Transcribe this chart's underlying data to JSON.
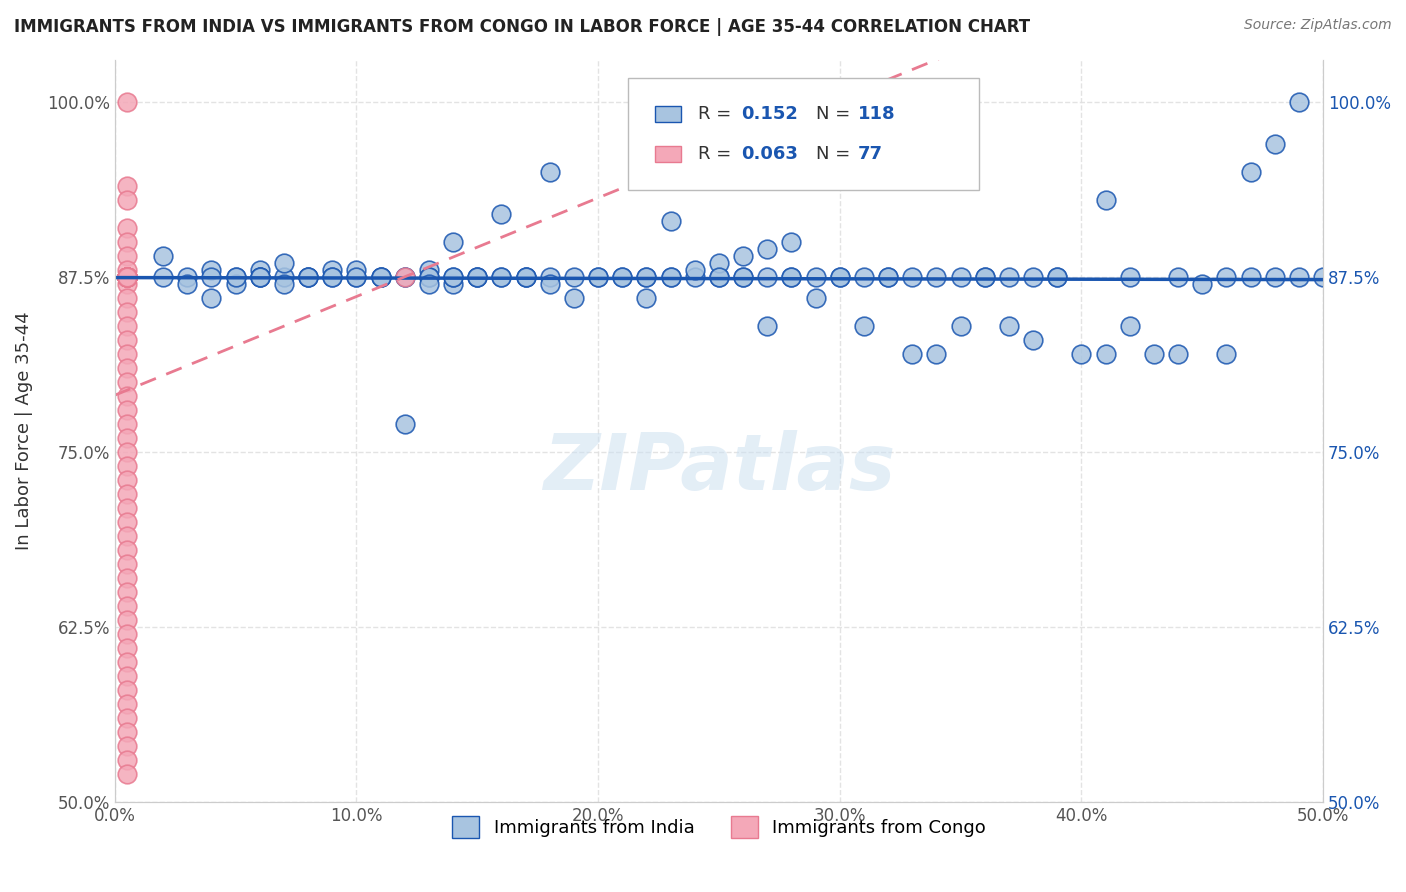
{
  "title": "IMMIGRANTS FROM INDIA VS IMMIGRANTS FROM CONGO IN LABOR FORCE | AGE 35-44 CORRELATION CHART",
  "source": "Source: ZipAtlas.com",
  "ylabel": "In Labor Force | Age 35-44",
  "xlim": [
    0.0,
    0.5
  ],
  "ylim": [
    0.5,
    1.03
  ],
  "yticks": [
    0.5,
    0.625,
    0.75,
    0.875,
    1.0
  ],
  "ytick_labels": [
    "50.0%",
    "62.5%",
    "75.0%",
    "87.5%",
    "100.0%"
  ],
  "xticks": [
    0.0,
    0.1,
    0.2,
    0.3,
    0.4,
    0.5
  ],
  "xtick_labels": [
    "0.0%",
    "10.0%",
    "20.0%",
    "30.0%",
    "40.0%",
    "50.0%"
  ],
  "legend_R_india": "0.152",
  "legend_N_india": "118",
  "legend_R_congo": "0.063",
  "legend_N_congo": "77",
  "india_color": "#a8c4e0",
  "congo_color": "#f4a8b8",
  "india_line_color": "#1a56b0",
  "congo_line_color": "#e87a90",
  "watermark": "ZIPatlas",
  "grid_color": "#e0e0e0",
  "india_scatter_x": [
    0.02,
    0.03,
    0.04,
    0.02,
    0.03,
    0.04,
    0.05,
    0.06,
    0.07,
    0.04,
    0.05,
    0.06,
    0.07,
    0.08,
    0.09,
    0.1,
    0.12,
    0.13,
    0.14,
    0.15,
    0.07,
    0.08,
    0.09,
    0.1,
    0.11,
    0.13,
    0.14,
    0.15,
    0.16,
    0.17,
    0.05,
    0.06,
    0.08,
    0.09,
    0.1,
    0.11,
    0.12,
    0.13,
    0.14,
    0.15,
    0.16,
    0.17,
    0.18,
    0.19,
    0.2,
    0.21,
    0.22,
    0.23,
    0.24,
    0.25,
    0.26,
    0.27,
    0.28,
    0.29,
    0.3,
    0.31,
    0.32,
    0.33,
    0.34,
    0.35,
    0.2,
    0.21,
    0.22,
    0.24,
    0.25,
    0.26,
    0.27,
    0.28,
    0.38,
    0.4,
    0.42,
    0.44,
    0.46,
    0.14,
    0.16,
    0.18,
    0.23,
    0.3,
    0.36,
    0.39,
    0.12,
    0.19,
    0.22,
    0.25,
    0.27,
    0.29,
    0.31,
    0.33,
    0.34,
    0.35,
    0.37,
    0.38,
    0.41,
    0.43,
    0.45,
    0.47,
    0.48,
    0.49,
    0.13,
    0.17,
    0.18,
    0.23,
    0.26,
    0.28,
    0.32,
    0.36,
    0.37,
    0.39,
    0.41,
    0.42,
    0.44,
    0.46,
    0.47,
    0.48,
    0.49,
    0.5,
    0.06,
    0.11
  ],
  "india_scatter_y": [
    0.875,
    0.875,
    0.88,
    0.89,
    0.87,
    0.86,
    0.875,
    0.88,
    0.875,
    0.875,
    0.87,
    0.875,
    0.885,
    0.875,
    0.88,
    0.875,
    0.875,
    0.88,
    0.87,
    0.875,
    0.87,
    0.875,
    0.875,
    0.88,
    0.875,
    0.875,
    0.875,
    0.875,
    0.875,
    0.875,
    0.875,
    0.875,
    0.875,
    0.875,
    0.875,
    0.875,
    0.875,
    0.875,
    0.875,
    0.875,
    0.875,
    0.875,
    0.875,
    0.875,
    0.875,
    0.875,
    0.875,
    0.875,
    0.875,
    0.875,
    0.875,
    0.875,
    0.875,
    0.875,
    0.875,
    0.875,
    0.875,
    0.875,
    0.875,
    0.875,
    0.875,
    0.875,
    0.875,
    0.88,
    0.885,
    0.89,
    0.895,
    0.9,
    0.875,
    0.82,
    0.84,
    0.82,
    0.82,
    0.9,
    0.92,
    0.95,
    0.915,
    0.875,
    0.875,
    0.875,
    0.77,
    0.86,
    0.86,
    0.875,
    0.84,
    0.86,
    0.84,
    0.82,
    0.82,
    0.84,
    0.84,
    0.83,
    0.82,
    0.82,
    0.87,
    0.95,
    0.97,
    1.0,
    0.87,
    0.875,
    0.87,
    0.875,
    0.875,
    0.875,
    0.875,
    0.875,
    0.875,
    0.875,
    0.93,
    0.875,
    0.875,
    0.875,
    0.875,
    0.875,
    0.875,
    0.875,
    0.875,
    0.875
  ],
  "congo_scatter_x": [
    0.005,
    0.005,
    0.005,
    0.005,
    0.005,
    0.005,
    0.005,
    0.005,
    0.005,
    0.005,
    0.005,
    0.005,
    0.005,
    0.005,
    0.005,
    0.005,
    0.005,
    0.005,
    0.005,
    0.005,
    0.005,
    0.005,
    0.005,
    0.005,
    0.005,
    0.005,
    0.005,
    0.005,
    0.005,
    0.005,
    0.005,
    0.005,
    0.005,
    0.005,
    0.005,
    0.005,
    0.005,
    0.12,
    0.005,
    0.005,
    0.005,
    0.005,
    0.005,
    0.005,
    0.005,
    0.005,
    0.005,
    0.005,
    0.005,
    0.005,
    0.005,
    0.005,
    0.005,
    0.005,
    0.005,
    0.005,
    0.005,
    0.005,
    0.005,
    0.005,
    0.005,
    0.005,
    0.005,
    0.005,
    0.005,
    0.005,
    0.005,
    0.005,
    0.005,
    0.005,
    0.005,
    0.005,
    0.005,
    0.005,
    0.005,
    0.005,
    0.005
  ],
  "congo_scatter_y": [
    1.0,
    0.94,
    0.93,
    0.91,
    0.9,
    0.89,
    0.88,
    0.875,
    0.875,
    0.875,
    0.875,
    0.875,
    0.875,
    0.875,
    0.875,
    0.875,
    0.875,
    0.875,
    0.875,
    0.875,
    0.875,
    0.875,
    0.875,
    0.875,
    0.875,
    0.875,
    0.875,
    0.875,
    0.875,
    0.875,
    0.875,
    0.87,
    0.86,
    0.85,
    0.84,
    0.83,
    0.82,
    0.875,
    0.81,
    0.8,
    0.79,
    0.78,
    0.77,
    0.76,
    0.75,
    0.74,
    0.73,
    0.72,
    0.71,
    0.7,
    0.69,
    0.68,
    0.67,
    0.66,
    0.65,
    0.64,
    0.63,
    0.62,
    0.61,
    0.6,
    0.59,
    0.58,
    0.57,
    0.56,
    0.55,
    0.54,
    0.53,
    0.875,
    0.875,
    0.875,
    0.875,
    0.875,
    0.875,
    0.875,
    0.875,
    0.875,
    0.52
  ]
}
